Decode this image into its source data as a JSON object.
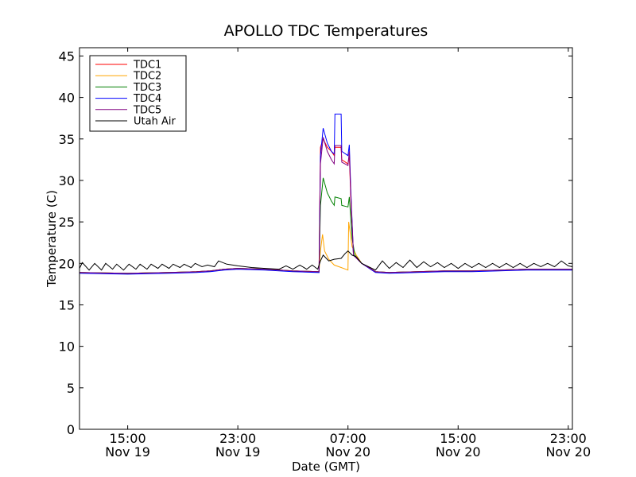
{
  "chart_data": {
    "type": "line",
    "title": "APOLLO TDC Temperatures",
    "xlabel": "Date (GMT)",
    "ylabel": "Temperature (C)",
    "ylim": [
      0,
      46
    ],
    "yticks": [
      0,
      5,
      10,
      15,
      20,
      25,
      30,
      35,
      40,
      45
    ],
    "xlim_hours": [
      11.5,
      47.3
    ],
    "xticks": [
      {
        "hour": 15,
        "time": "15:00",
        "date": "Nov 19"
      },
      {
        "hour": 23,
        "time": "23:00",
        "date": "Nov 19"
      },
      {
        "hour": 31,
        "time": "07:00",
        "date": "Nov 20"
      },
      {
        "hour": 39,
        "time": "15:00",
        "date": "Nov 20"
      },
      {
        "hour": 47,
        "time": "23:00",
        "date": "Nov 20"
      }
    ],
    "legend_position": "top-left",
    "series": [
      {
        "name": "TDC1",
        "color": "#ff0000",
        "points": [
          [
            11.5,
            18.9
          ],
          [
            15,
            18.8
          ],
          [
            18,
            18.9
          ],
          [
            20,
            19.0
          ],
          [
            21,
            19.1
          ],
          [
            22,
            19.3
          ],
          [
            23,
            19.4
          ],
          [
            25,
            19.3
          ],
          [
            27,
            19.1
          ],
          [
            28.9,
            19.0
          ],
          [
            29.0,
            34.0
          ],
          [
            29.2,
            35.0
          ],
          [
            29.5,
            34.0
          ],
          [
            29.8,
            33.5
          ],
          [
            30.0,
            33.0
          ],
          [
            30.05,
            34.0
          ],
          [
            30.5,
            34.0
          ],
          [
            30.55,
            32.5
          ],
          [
            31.0,
            32.0
          ],
          [
            31.1,
            33.0
          ],
          [
            31.2,
            28.0
          ],
          [
            31.4,
            21.0
          ],
          [
            32,
            20.0
          ],
          [
            33,
            19.0
          ],
          [
            34,
            18.9
          ],
          [
            36,
            19.0
          ],
          [
            38,
            19.1
          ],
          [
            40,
            19.1
          ],
          [
            42,
            19.2
          ],
          [
            44,
            19.3
          ],
          [
            46,
            19.3
          ],
          [
            47.3,
            19.3
          ]
        ]
      },
      {
        "name": "TDC2",
        "color": "#ffa500",
        "points": [
          [
            11.5,
            18.9
          ],
          [
            15,
            18.8
          ],
          [
            18,
            18.9
          ],
          [
            20,
            19.0
          ],
          [
            21,
            19.1
          ],
          [
            22,
            19.3
          ],
          [
            23,
            19.4
          ],
          [
            25,
            19.3
          ],
          [
            27,
            19.1
          ],
          [
            28.9,
            19.0
          ],
          [
            29.0,
            21.5
          ],
          [
            29.15,
            23.5
          ],
          [
            29.3,
            21.5
          ],
          [
            29.6,
            20.5
          ],
          [
            30.0,
            19.8
          ],
          [
            30.5,
            19.5
          ],
          [
            31.0,
            19.2
          ],
          [
            31.05,
            25.0
          ],
          [
            31.3,
            22.0
          ],
          [
            31.6,
            21.0
          ],
          [
            32,
            20.0
          ],
          [
            33,
            19.0
          ],
          [
            34,
            18.9
          ],
          [
            36,
            19.0
          ],
          [
            38,
            19.1
          ],
          [
            40,
            19.1
          ],
          [
            42,
            19.2
          ],
          [
            44,
            19.3
          ],
          [
            46,
            19.3
          ],
          [
            47.3,
            19.3
          ]
        ]
      },
      {
        "name": "TDC3",
        "color": "#008000",
        "points": [
          [
            11.5,
            18.9
          ],
          [
            15,
            18.8
          ],
          [
            18,
            18.9
          ],
          [
            20,
            19.0
          ],
          [
            21,
            19.1
          ],
          [
            22,
            19.3
          ],
          [
            23,
            19.4
          ],
          [
            25,
            19.3
          ],
          [
            27,
            19.1
          ],
          [
            28.9,
            19.0
          ],
          [
            29.0,
            27.0
          ],
          [
            29.2,
            30.3
          ],
          [
            29.5,
            28.5
          ],
          [
            29.8,
            27.5
          ],
          [
            30.0,
            27.0
          ],
          [
            30.05,
            28.0
          ],
          [
            30.5,
            27.8
          ],
          [
            30.55,
            27.0
          ],
          [
            31.0,
            26.8
          ],
          [
            31.1,
            28.0
          ],
          [
            31.3,
            23.0
          ],
          [
            31.5,
            21.0
          ],
          [
            32,
            20.0
          ],
          [
            33,
            19.0
          ],
          [
            34,
            18.9
          ],
          [
            36,
            19.0
          ],
          [
            38,
            19.1
          ],
          [
            40,
            19.1
          ],
          [
            42,
            19.2
          ],
          [
            44,
            19.3
          ],
          [
            46,
            19.3
          ],
          [
            47.3,
            19.3
          ]
        ]
      },
      {
        "name": "TDC4",
        "color": "#0000ff",
        "points": [
          [
            11.5,
            18.8
          ],
          [
            15,
            18.7
          ],
          [
            18,
            18.8
          ],
          [
            20,
            18.9
          ],
          [
            21,
            19.0
          ],
          [
            22,
            19.2
          ],
          [
            23,
            19.3
          ],
          [
            25,
            19.2
          ],
          [
            27,
            19.0
          ],
          [
            28.9,
            18.9
          ],
          [
            29.0,
            33.0
          ],
          [
            29.2,
            36.3
          ],
          [
            29.5,
            34.5
          ],
          [
            29.8,
            33.5
          ],
          [
            30.0,
            33.2
          ],
          [
            30.05,
            38.0
          ],
          [
            30.5,
            38.0
          ],
          [
            30.55,
            33.5
          ],
          [
            31.0,
            33.0
          ],
          [
            31.1,
            34.3
          ],
          [
            31.2,
            29.0
          ],
          [
            31.4,
            21.0
          ],
          [
            32,
            20.0
          ],
          [
            33,
            18.9
          ],
          [
            34,
            18.8
          ],
          [
            36,
            18.9
          ],
          [
            38,
            19.0
          ],
          [
            40,
            19.0
          ],
          [
            42,
            19.1
          ],
          [
            44,
            19.2
          ],
          [
            46,
            19.2
          ],
          [
            47.3,
            19.2
          ]
        ]
      },
      {
        "name": "TDC5",
        "color": "#800080",
        "points": [
          [
            11.5,
            18.9
          ],
          [
            15,
            18.8
          ],
          [
            18,
            18.9
          ],
          [
            20,
            19.0
          ],
          [
            21,
            19.1
          ],
          [
            22,
            19.3
          ],
          [
            23,
            19.4
          ],
          [
            25,
            19.3
          ],
          [
            27,
            19.1
          ],
          [
            28.9,
            19.0
          ],
          [
            29.0,
            32.0
          ],
          [
            29.2,
            35.2
          ],
          [
            29.5,
            33.5
          ],
          [
            29.8,
            32.5
          ],
          [
            30.0,
            32.0
          ],
          [
            30.05,
            34.2
          ],
          [
            30.5,
            34.2
          ],
          [
            30.55,
            32.2
          ],
          [
            31.0,
            31.8
          ],
          [
            31.1,
            33.5
          ],
          [
            31.2,
            28.5
          ],
          [
            31.4,
            21.0
          ],
          [
            32,
            20.0
          ],
          [
            33,
            19.0
          ],
          [
            34,
            18.9
          ],
          [
            36,
            19.0
          ],
          [
            38,
            19.1
          ],
          [
            40,
            19.1
          ],
          [
            42,
            19.2
          ],
          [
            44,
            19.3
          ],
          [
            46,
            19.3
          ],
          [
            47.3,
            19.3
          ]
        ]
      },
      {
        "name": "Utah Air",
        "color": "#000000",
        "points": [
          [
            11.5,
            19.4
          ],
          [
            11.7,
            20.1
          ],
          [
            12.2,
            19.2
          ],
          [
            12.6,
            20.0
          ],
          [
            13.1,
            19.2
          ],
          [
            13.4,
            20.0
          ],
          [
            13.9,
            19.3
          ],
          [
            14.2,
            19.9
          ],
          [
            14.7,
            19.2
          ],
          [
            15.1,
            19.9
          ],
          [
            15.6,
            19.3
          ],
          [
            15.9,
            19.9
          ],
          [
            16.4,
            19.3
          ],
          [
            16.7,
            19.9
          ],
          [
            17.2,
            19.4
          ],
          [
            17.5,
            19.9
          ],
          [
            18.0,
            19.4
          ],
          [
            18.3,
            19.9
          ],
          [
            18.8,
            19.5
          ],
          [
            19.1,
            19.9
          ],
          [
            19.6,
            19.5
          ],
          [
            19.9,
            20.0
          ],
          [
            20.4,
            19.6
          ],
          [
            20.8,
            19.8
          ],
          [
            21.3,
            19.6
          ],
          [
            21.6,
            20.3
          ],
          [
            22.2,
            19.9
          ],
          [
            23,
            19.7
          ],
          [
            24,
            19.5
          ],
          [
            25,
            19.4
          ],
          [
            26,
            19.3
          ],
          [
            26.5,
            19.7
          ],
          [
            27,
            19.3
          ],
          [
            27.5,
            19.8
          ],
          [
            28,
            19.3
          ],
          [
            28.4,
            19.8
          ],
          [
            28.8,
            19.3
          ],
          [
            29.0,
            20.3
          ],
          [
            29.2,
            21.0
          ],
          [
            29.6,
            20.3
          ],
          [
            30.0,
            20.5
          ],
          [
            30.5,
            20.6
          ],
          [
            30.8,
            21.2
          ],
          [
            31.0,
            21.5
          ],
          [
            31.3,
            21.0
          ],
          [
            31.6,
            20.8
          ],
          [
            32,
            20.0
          ],
          [
            33,
            19.2
          ],
          [
            33.5,
            20.3
          ],
          [
            34,
            19.4
          ],
          [
            34.5,
            20.1
          ],
          [
            35,
            19.5
          ],
          [
            35.5,
            20.4
          ],
          [
            36,
            19.5
          ],
          [
            36.5,
            20.2
          ],
          [
            37,
            19.6
          ],
          [
            37.5,
            20.1
          ],
          [
            38,
            19.5
          ],
          [
            38.5,
            20.0
          ],
          [
            39,
            19.4
          ],
          [
            39.5,
            20.0
          ],
          [
            40,
            19.5
          ],
          [
            40.5,
            20.0
          ],
          [
            41,
            19.5
          ],
          [
            41.5,
            20.0
          ],
          [
            42,
            19.5
          ],
          [
            42.5,
            20.0
          ],
          [
            43,
            19.5
          ],
          [
            43.5,
            20.0
          ],
          [
            44,
            19.5
          ],
          [
            44.5,
            20.0
          ],
          [
            45,
            19.6
          ],
          [
            45.5,
            20.0
          ],
          [
            46,
            19.6
          ],
          [
            46.5,
            20.3
          ],
          [
            47,
            19.7
          ],
          [
            47.3,
            19.6
          ]
        ]
      }
    ]
  }
}
